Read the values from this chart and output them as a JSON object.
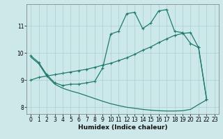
{
  "xlabel": "Humidex (Indice chaleur)",
  "background_color": "#cce8e8",
  "line_color": "#1f7a70",
  "grid_color": "#aacfcf",
  "xlim": [
    -0.5,
    23.5
  ],
  "ylim": [
    7.75,
    11.8
  ],
  "yticks": [
    8,
    9,
    10,
    11
  ],
  "xticks": [
    0,
    1,
    2,
    3,
    4,
    5,
    6,
    7,
    8,
    9,
    10,
    11,
    12,
    13,
    14,
    15,
    16,
    17,
    18,
    19,
    20,
    21,
    22,
    23
  ],
  "curve_upper_x": [
    0,
    1,
    2,
    3,
    4,
    5,
    6,
    7,
    8,
    9,
    10,
    11,
    12,
    13,
    14,
    15,
    16,
    17,
    18,
    19,
    20,
    21,
    22
  ],
  "curve_upper_y": [
    9.9,
    9.65,
    9.2,
    8.9,
    8.8,
    8.85,
    8.85,
    8.9,
    8.95,
    9.45,
    10.7,
    10.8,
    11.45,
    11.5,
    10.9,
    11.1,
    11.55,
    11.6,
    10.8,
    10.75,
    10.35,
    10.2,
    8.3
  ],
  "curve_diag_x": [
    0,
    1,
    2,
    3,
    4,
    5,
    6,
    7,
    8,
    9,
    10,
    11,
    12,
    13,
    14,
    15,
    16,
    17,
    18,
    19,
    20,
    21,
    22
  ],
  "curve_diag_y": [
    9.0,
    9.1,
    9.15,
    9.2,
    9.25,
    9.3,
    9.35,
    9.4,
    9.47,
    9.55,
    9.62,
    9.72,
    9.82,
    9.95,
    10.1,
    10.22,
    10.38,
    10.52,
    10.65,
    10.72,
    10.75,
    10.2,
    8.3
  ],
  "curve_low_x": [
    0,
    1,
    2,
    3,
    4,
    5,
    6,
    7,
    8,
    9,
    10,
    11,
    12,
    13,
    14,
    15,
    16,
    17,
    18,
    19,
    20,
    21,
    22
  ],
  "curve_low_y": [
    9.85,
    9.6,
    9.15,
    8.85,
    8.7,
    8.6,
    8.52,
    8.42,
    8.32,
    8.22,
    8.13,
    8.06,
    8.0,
    7.96,
    7.92,
    7.89,
    7.87,
    7.86,
    7.86,
    7.87,
    7.92,
    8.1,
    8.27
  ]
}
